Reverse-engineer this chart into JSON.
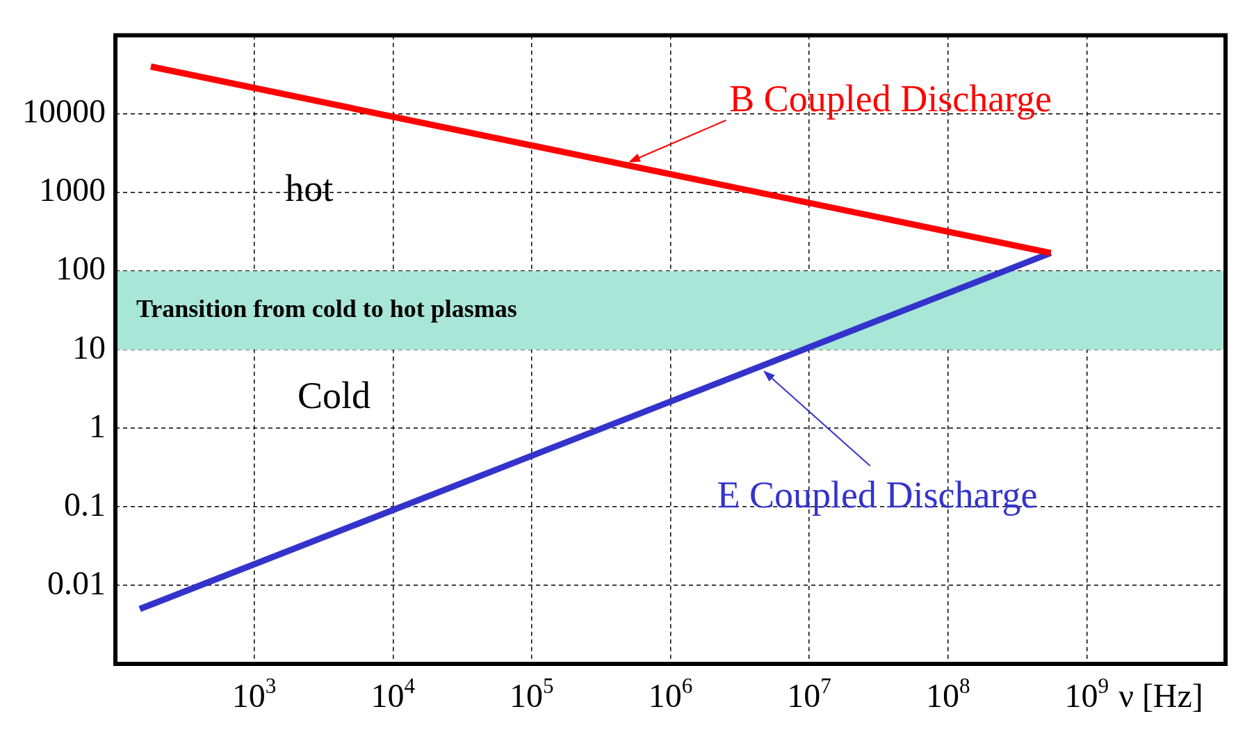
{
  "chart_data": {
    "type": "line",
    "xlabel": "ν [Hz]",
    "log": "xy",
    "grid": true,
    "legend": false,
    "line_style": "solid",
    "marker": "none",
    "xlim": [
      100,
      10000000000
    ],
    "ylim": [
      0.001,
      100000
    ],
    "xticks": [
      {
        "value": 1000,
        "label": "10$^{3}$"
      },
      {
        "value": 10000,
        "label": "10$^{4}$"
      },
      {
        "value": 100000,
        "label": "10$^{5}$"
      },
      {
        "value": 1000000,
        "label": "10$^{6}$"
      },
      {
        "value": 10000000,
        "label": "10$^{7}$"
      },
      {
        "value": 100000000,
        "label": "10$^{8}$"
      },
      {
        "value": 1000000000,
        "label": "10$^{9}$"
      }
    ],
    "yticks": [
      0.01,
      0.1,
      1,
      10,
      100,
      1000,
      10000
    ],
    "series": [
      {
        "name": "B Coupled Discharge",
        "color": "#ff0000",
        "x": [
          180,
          550000000
        ],
        "values": [
          40000,
          170
        ]
      },
      {
        "name": "E Coupled Discharge",
        "color": "#3333cc",
        "x": [
          150,
          550000000
        ],
        "values": [
          0.005,
          170
        ]
      }
    ],
    "bands": [
      {
        "axis": "y",
        "from": 10,
        "to": 100,
        "label": "Transition from cold to hot plasmas",
        "color": "#a8e6d8"
      }
    ],
    "annotations": [
      "hot",
      "Cold"
    ]
  }
}
